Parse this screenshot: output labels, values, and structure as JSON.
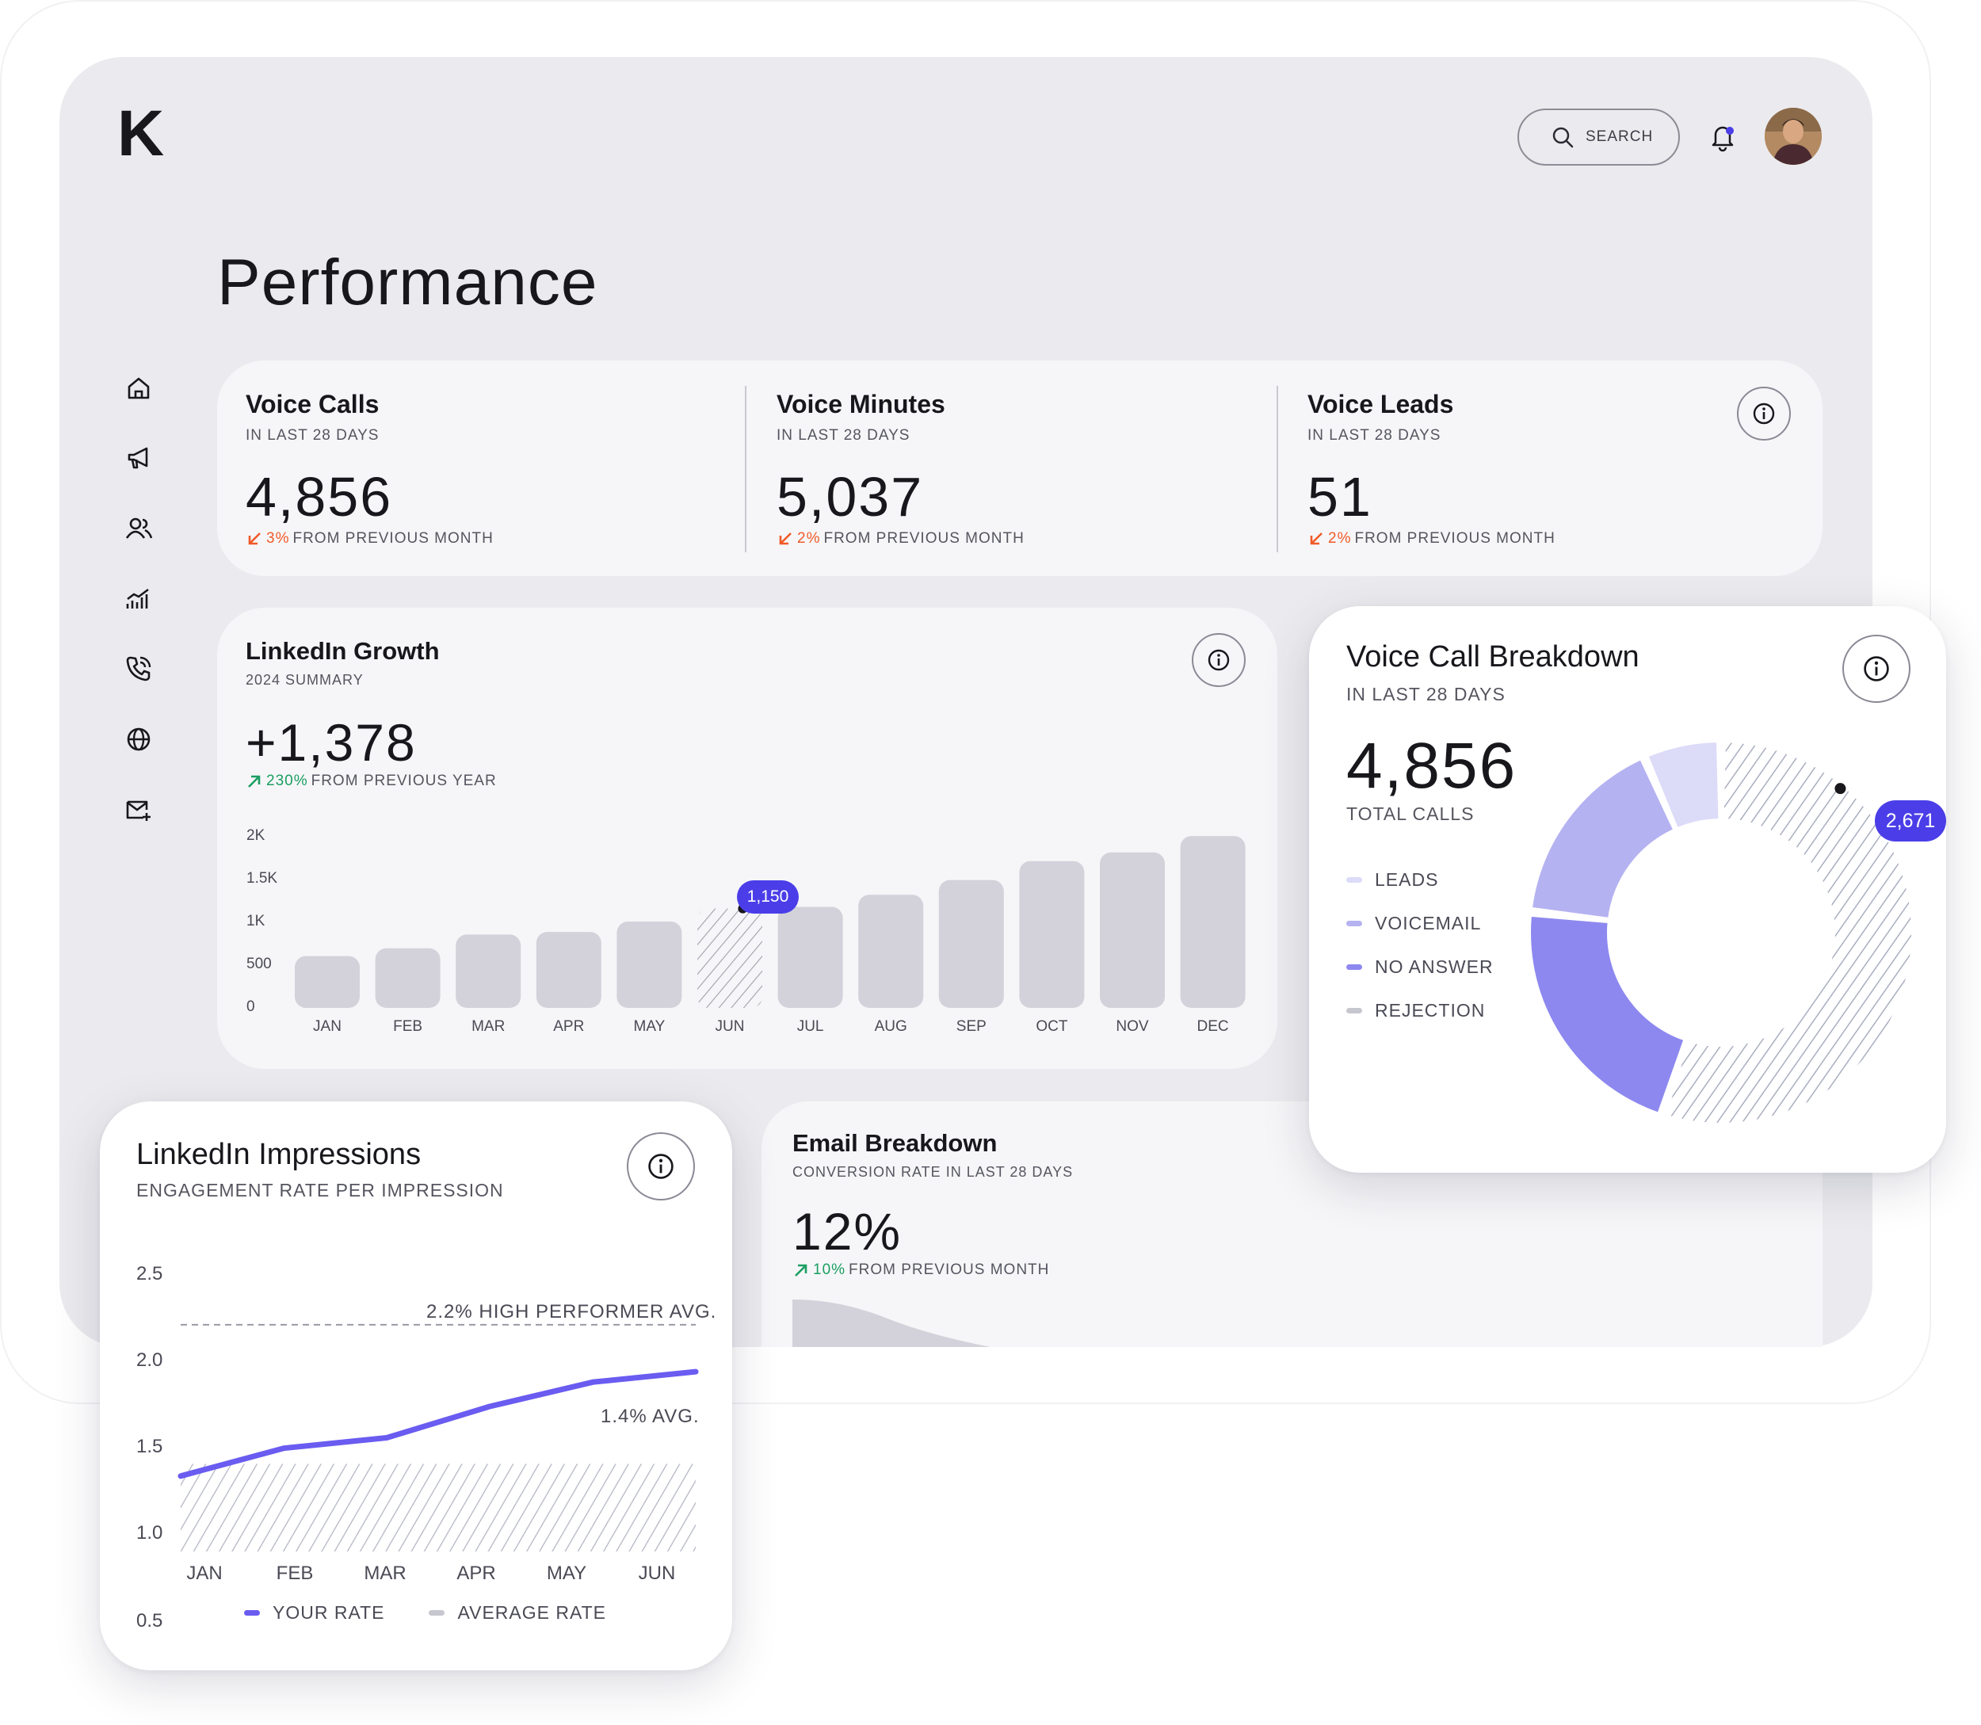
{
  "brand": {
    "logo_letter": "K"
  },
  "header": {
    "search_label": "SEARCH",
    "avatar": "avatar-photo"
  },
  "page_title": "Performance",
  "sidebar": {
    "items": [
      {
        "icon": "home-icon"
      },
      {
        "icon": "megaphone-icon"
      },
      {
        "icon": "users-icon"
      },
      {
        "icon": "analytics-icon"
      },
      {
        "icon": "phone-icon"
      },
      {
        "icon": "globe-icon"
      },
      {
        "icon": "mail-add-icon"
      }
    ]
  },
  "stats": [
    {
      "title": "Voice Calls",
      "period": "IN LAST 28 DAYS",
      "value": "4,856",
      "delta_pct": "3%",
      "delta_text": "FROM PREVIOUS MONTH"
    },
    {
      "title": "Voice Minutes",
      "period": "IN LAST 28 DAYS",
      "value": "5,037",
      "delta_pct": "2%",
      "delta_text": "FROM PREVIOUS MONTH"
    },
    {
      "title": "Voice Leads",
      "period": "IN LAST 28 DAYS",
      "value": "51",
      "delta_pct": "2%",
      "delta_text": "FROM PREVIOUS MONTH"
    }
  ],
  "linkedin_growth": {
    "title": "LinkedIn Growth",
    "subtitle": "2024 SUMMARY",
    "value": "+1,378",
    "delta_pct": "230%",
    "delta_text": "FROM PREVIOUS YEAR",
    "tooltip": "1,150",
    "y_ticks": [
      "2K",
      "1.5K",
      "1K",
      "500",
      "0"
    ]
  },
  "voice_breakdown": {
    "title": "Voice Call Breakdown",
    "subtitle": "IN LAST 28 DAYS",
    "value": "4,856",
    "value_label": "TOTAL CALLS",
    "tooltip": "2,671",
    "legend": [
      "LEADS",
      "VOICEMAIL",
      "NO ANSWER",
      "REJECTION"
    ]
  },
  "linkedin_impressions": {
    "title": "LinkedIn Impressions",
    "subtitle": "ENGAGEMENT RATE PER IMPRESSION",
    "high_label": "2.2% HIGH PERFORMER AVG.",
    "avg_label": "1.4% AVG.",
    "y_ticks": [
      "2.5",
      "2.0",
      "1.5",
      "1.0",
      "0.5"
    ],
    "legend": [
      "YOUR RATE",
      "AVERAGE RATE"
    ]
  },
  "email_breakdown": {
    "title": "Email Breakdown",
    "subtitle": "CONVERSION RATE IN LAST 28 DAYS",
    "value": "12%",
    "delta_pct": "10%",
    "delta_text": "FROM PREVIOUS MONTH"
  },
  "colors": {
    "accent": "#4b3ee8",
    "bar": "#d3d2da",
    "down": "#f05a28",
    "up": "#1b9e62",
    "leads": "#dcdbf8",
    "voicemail": "#b5b2f2",
    "no_answer": "#8d88ef",
    "rejection": "#aab0c2",
    "line": "#6a5cf0"
  },
  "chart_data": [
    {
      "type": "bar",
      "title": "LinkedIn Growth",
      "categories": [
        "JAN",
        "FEB",
        "MAR",
        "APR",
        "MAY",
        "JUN",
        "JUL",
        "AUG",
        "SEP",
        "OCT",
        "NOV",
        "DEC"
      ],
      "values": [
        600,
        690,
        850,
        880,
        1000,
        1150,
        1170,
        1310,
        1480,
        1700,
        1800,
        1990
      ],
      "ylim": [
        0,
        2000
      ],
      "highlight": "JUN",
      "highlight_label": "1,150"
    },
    {
      "type": "pie",
      "title": "Voice Call Breakdown",
      "categories": [
        "LEADS",
        "VOICEMAIL",
        "NO ANSWER",
        "REJECTION"
      ],
      "values": [
        320,
        810,
        1055,
        2671
      ],
      "total": 4856
    },
    {
      "type": "line",
      "title": "LinkedIn Impressions",
      "categories": [
        "JAN",
        "FEB",
        "MAR",
        "APR",
        "MAY",
        "JUN"
      ],
      "series": [
        {
          "name": "YOUR RATE",
          "values": [
            1.33,
            1.49,
            1.55,
            1.73,
            1.87,
            1.93
          ]
        }
      ],
      "reference_lines": [
        {
          "label": "2.2% HIGH PERFORMER AVG.",
          "value": 2.2
        },
        {
          "label": "1.4% AVG.",
          "value": 1.4
        }
      ],
      "ylim": [
        0.5,
        2.5
      ]
    }
  ]
}
